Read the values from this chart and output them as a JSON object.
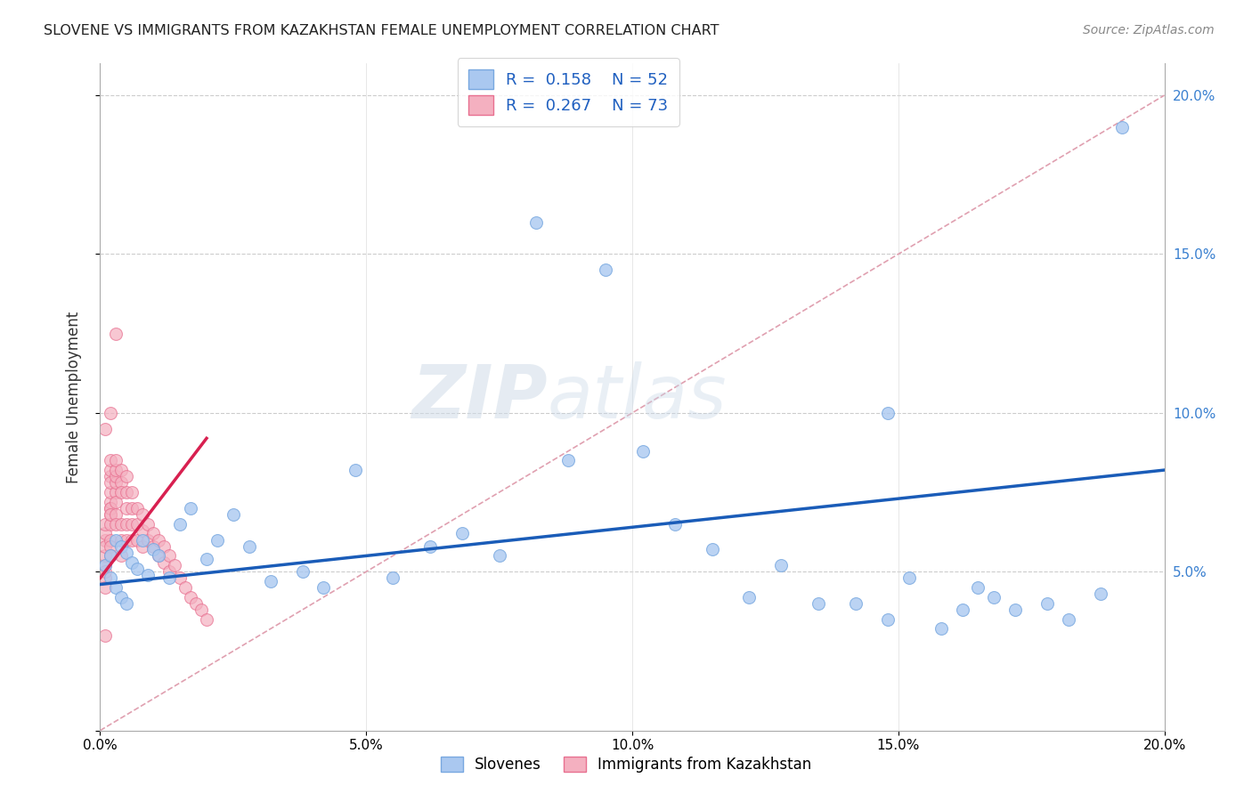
{
  "title": "SLOVENE VS IMMIGRANTS FROM KAZAKHSTAN FEMALE UNEMPLOYMENT CORRELATION CHART",
  "source": "Source: ZipAtlas.com",
  "ylabel": "Female Unemployment",
  "xlim": [
    0,
    0.2
  ],
  "ylim": [
    0,
    0.21
  ],
  "xticks": [
    0.0,
    0.05,
    0.1,
    0.15,
    0.2
  ],
  "yticks": [
    0.0,
    0.05,
    0.1,
    0.15,
    0.2
  ],
  "slovene_color": "#aac8f0",
  "slovene_edge_color": "#78a8e0",
  "kazakh_color": "#f4b0c0",
  "kazakh_edge_color": "#e87090",
  "slovene_R": 0.158,
  "slovene_N": 52,
  "kazakh_R": 0.267,
  "kazakh_N": 73,
  "trend_blue": "#1a5cb8",
  "trend_pink": "#d82050",
  "legend_label_slovene": "Slovenes",
  "legend_label_kazakh": "Immigrants from Kazakhstan",
  "watermark_zip": "ZIP",
  "watermark_atlas": "atlas",
  "slovene_x": [
    0.001,
    0.002,
    0.002,
    0.003,
    0.003,
    0.004,
    0.004,
    0.005,
    0.005,
    0.006,
    0.007,
    0.008,
    0.009,
    0.01,
    0.011,
    0.013,
    0.015,
    0.017,
    0.02,
    0.022,
    0.025,
    0.028,
    0.032,
    0.038,
    0.042,
    0.048,
    0.055,
    0.062,
    0.068,
    0.075,
    0.082,
    0.088,
    0.095,
    0.102,
    0.108,
    0.115,
    0.122,
    0.128,
    0.135,
    0.142,
    0.148,
    0.152,
    0.158,
    0.162,
    0.165,
    0.168,
    0.172,
    0.178,
    0.182,
    0.188,
    0.148,
    0.192
  ],
  "slovene_y": [
    0.052,
    0.055,
    0.048,
    0.06,
    0.045,
    0.058,
    0.042,
    0.056,
    0.04,
    0.053,
    0.051,
    0.06,
    0.049,
    0.057,
    0.055,
    0.048,
    0.065,
    0.07,
    0.054,
    0.06,
    0.068,
    0.058,
    0.047,
    0.05,
    0.045,
    0.082,
    0.048,
    0.058,
    0.062,
    0.055,
    0.16,
    0.085,
    0.145,
    0.088,
    0.065,
    0.057,
    0.042,
    0.052,
    0.04,
    0.04,
    0.035,
    0.048,
    0.032,
    0.038,
    0.045,
    0.042,
    0.038,
    0.04,
    0.035,
    0.043,
    0.1,
    0.19
  ],
  "kazakh_x": [
    0.001,
    0.001,
    0.001,
    0.001,
    0.001,
    0.001,
    0.001,
    0.001,
    0.001,
    0.002,
    0.002,
    0.002,
    0.002,
    0.002,
    0.002,
    0.002,
    0.002,
    0.002,
    0.002,
    0.002,
    0.002,
    0.002,
    0.002,
    0.003,
    0.003,
    0.003,
    0.003,
    0.003,
    0.003,
    0.003,
    0.003,
    0.004,
    0.004,
    0.004,
    0.004,
    0.004,
    0.004,
    0.005,
    0.005,
    0.005,
    0.005,
    0.005,
    0.006,
    0.006,
    0.006,
    0.006,
    0.007,
    0.007,
    0.007,
    0.008,
    0.008,
    0.008,
    0.009,
    0.009,
    0.01,
    0.01,
    0.011,
    0.011,
    0.012,
    0.012,
    0.013,
    0.013,
    0.014,
    0.015,
    0.016,
    0.017,
    0.018,
    0.019,
    0.02,
    0.001,
    0.002,
    0.003,
    0.001
  ],
  "kazakh_y": [
    0.052,
    0.055,
    0.048,
    0.06,
    0.045,
    0.058,
    0.062,
    0.065,
    0.05,
    0.07,
    0.068,
    0.065,
    0.072,
    0.075,
    0.06,
    0.058,
    0.055,
    0.08,
    0.078,
    0.082,
    0.085,
    0.07,
    0.068,
    0.075,
    0.078,
    0.08,
    0.082,
    0.072,
    0.068,
    0.065,
    0.085,
    0.078,
    0.082,
    0.075,
    0.065,
    0.06,
    0.055,
    0.08,
    0.075,
    0.07,
    0.065,
    0.06,
    0.075,
    0.07,
    0.065,
    0.06,
    0.07,
    0.065,
    0.06,
    0.068,
    0.063,
    0.058,
    0.065,
    0.06,
    0.062,
    0.058,
    0.06,
    0.055,
    0.058,
    0.053,
    0.055,
    0.05,
    0.052,
    0.048,
    0.045,
    0.042,
    0.04,
    0.038,
    0.035,
    0.095,
    0.1,
    0.125,
    0.03
  ],
  "blue_trend_x": [
    0.0,
    0.2
  ],
  "blue_trend_y": [
    0.046,
    0.082
  ],
  "pink_trend_x": [
    0.0,
    0.02
  ],
  "pink_trend_y": [
    0.048,
    0.092
  ]
}
